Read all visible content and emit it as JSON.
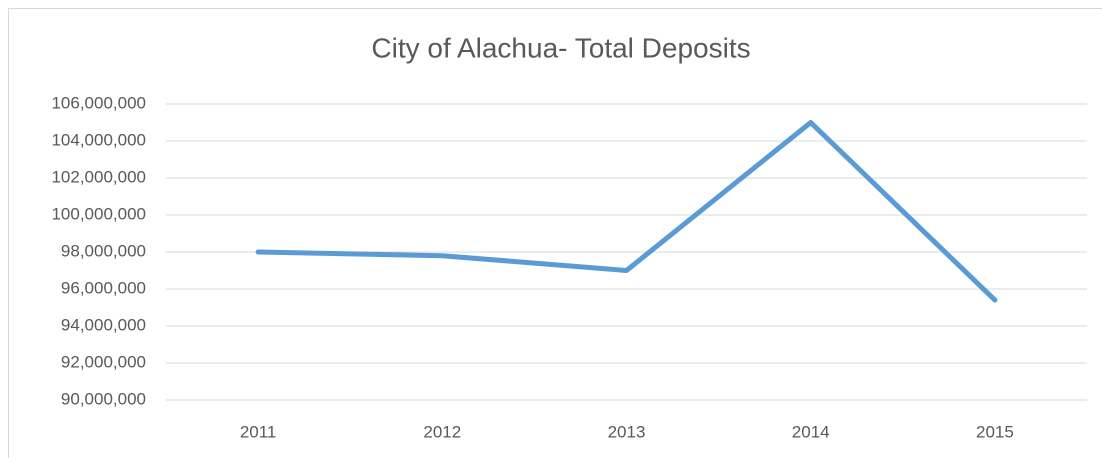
{
  "chart_data": {
    "type": "line",
    "title": "City of Alachua- Total Deposits",
    "categories": [
      "2011",
      "2012",
      "2013",
      "2014",
      "2015"
    ],
    "series": [
      {
        "name": "Total Deposits",
        "color": "#5b9bd5",
        "values": [
          98000000,
          97800000,
          97000000,
          105000000,
          95400000
        ]
      }
    ],
    "ylim": [
      90000000,
      106000000
    ],
    "yticks": [
      {
        "value": 90000000,
        "label": "90,000,000"
      },
      {
        "value": 92000000,
        "label": "92,000,000"
      },
      {
        "value": 94000000,
        "label": "94,000,000"
      },
      {
        "value": 96000000,
        "label": "96,000,000"
      },
      {
        "value": 98000000,
        "label": "98,000,000"
      },
      {
        "value": 100000000,
        "label": "100,000,000"
      },
      {
        "value": 102000000,
        "label": "102,000,000"
      },
      {
        "value": 104000000,
        "label": "104,000,000"
      },
      {
        "value": 106000000,
        "label": "106,000,000"
      }
    ],
    "grid": true
  }
}
